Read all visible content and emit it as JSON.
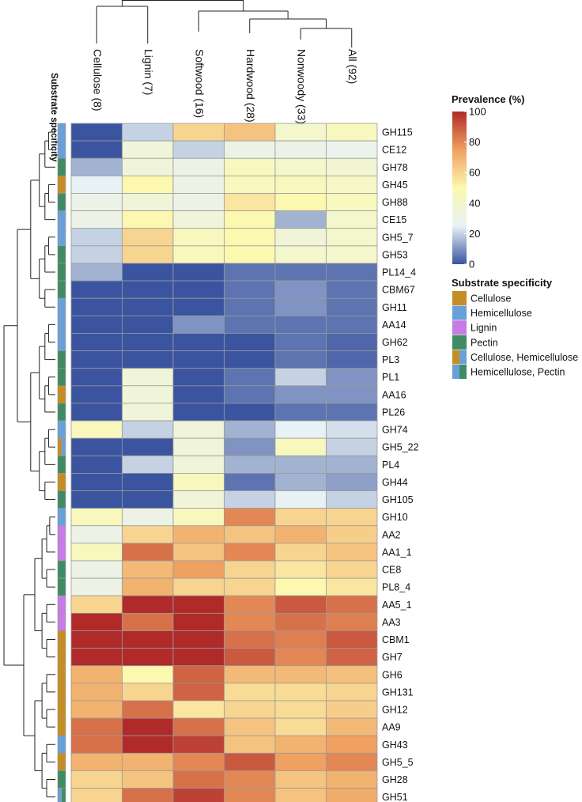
{
  "chart_data": {
    "type": "heatmap",
    "title": "",
    "columns": [
      "Cellulose (8)",
      "Lignin (7)",
      "Softwood (16)",
      "Hardwood (28)",
      "Nonwoody (33)",
      "All (92)"
    ],
    "rows": [
      "GH115",
      "CE12",
      "GH78",
      "GH45",
      "GH88",
      "CE15",
      "GH5_7",
      "GH53",
      "PL14_4",
      "CBM67",
      "GH11",
      "AA14",
      "GH62",
      "PL3",
      "PL1",
      "AA16",
      "PL26",
      "GH74",
      "GH5_22",
      "PL4",
      "GH44",
      "GH105",
      "GH10",
      "AA2",
      "AA1_1",
      "CE8",
      "PL8_4",
      "AA5_1",
      "AA3",
      "CBM1",
      "GH7",
      "GH6",
      "GH131",
      "GH12",
      "AA9",
      "GH43",
      "GH5_5",
      "GH28",
      "GH51"
    ],
    "values": [
      [
        0,
        20,
        60,
        65,
        40,
        45
      ],
      [
        0,
        35,
        20,
        30,
        30,
        28
      ],
      [
        15,
        35,
        30,
        45,
        40,
        38
      ],
      [
        25,
        50,
        30,
        45,
        45,
        42
      ],
      [
        30,
        35,
        30,
        55,
        50,
        45
      ],
      [
        30,
        50,
        35,
        50,
        15,
        40
      ],
      [
        20,
        60,
        45,
        50,
        35,
        40
      ],
      [
        20,
        60,
        45,
        50,
        40,
        40
      ],
      [
        15,
        0,
        0,
        5,
        5,
        5
      ],
      [
        0,
        0,
        0,
        5,
        10,
        5
      ],
      [
        0,
        0,
        0,
        5,
        10,
        5
      ],
      [
        0,
        0,
        10,
        5,
        5,
        5
      ],
      [
        0,
        0,
        0,
        0,
        5,
        3
      ],
      [
        0,
        0,
        0,
        0,
        5,
        3
      ],
      [
        0,
        35,
        0,
        5,
        20,
        10
      ],
      [
        0,
        35,
        0,
        5,
        10,
        10
      ],
      [
        0,
        35,
        0,
        0,
        5,
        5
      ],
      [
        45,
        20,
        35,
        15,
        25,
        22
      ],
      [
        0,
        0,
        35,
        10,
        45,
        20
      ],
      [
        0,
        20,
        35,
        15,
        15,
        15
      ],
      [
        0,
        0,
        45,
        5,
        15,
        12
      ],
      [
        0,
        0,
        35,
        20,
        25,
        20
      ],
      [
        45,
        30,
        45,
        80,
        60,
        60
      ],
      [
        30,
        60,
        70,
        65,
        70,
        62
      ],
      [
        45,
        85,
        65,
        80,
        60,
        65
      ],
      [
        30,
        68,
        75,
        60,
        55,
        60
      ],
      [
        30,
        70,
        60,
        60,
        50,
        55
      ],
      [
        60,
        100,
        100,
        80,
        90,
        85
      ],
      [
        100,
        85,
        100,
        80,
        85,
        82
      ],
      [
        100,
        100,
        100,
        85,
        82,
        90
      ],
      [
        100,
        100,
        100,
        90,
        80,
        88
      ],
      [
        70,
        50,
        88,
        68,
        68,
        66
      ],
      [
        70,
        60,
        88,
        58,
        58,
        60
      ],
      [
        70,
        85,
        55,
        60,
        58,
        62
      ],
      [
        85,
        100,
        85,
        65,
        58,
        68
      ],
      [
        85,
        100,
        95,
        65,
        70,
        75
      ],
      [
        70,
        70,
        80,
        90,
        75,
        80
      ],
      [
        60,
        65,
        85,
        80,
        65,
        70
      ],
      [
        60,
        85,
        95,
        80,
        65,
        72
      ]
    ],
    "row_specificity": [
      "Hemicellulose",
      "Hemicellulose",
      "Pectin",
      "Cellulose",
      "Pectin",
      "Hemicellulose",
      "Hemicellulose",
      "Pectin",
      "Pectin",
      "Pectin",
      "Hemicellulose",
      "Hemicellulose",
      "Hemicellulose",
      "Pectin",
      "Pectin",
      "Cellulose",
      "Pectin",
      "Hemicellulose",
      "Cellulose, Hemicellulose",
      "Pectin",
      "Cellulose",
      "Pectin",
      "Hemicellulose",
      "Lignin",
      "Lignin",
      "Pectin",
      "Pectin",
      "Lignin",
      "Lignin",
      "Cellulose",
      "Cellulose",
      "Cellulose",
      "Cellulose",
      "Cellulose",
      "Cellulose",
      "Hemicellulose",
      "Cellulose",
      "Pectin",
      "Hemicellulose, Pectin"
    ],
    "specificity_track_label": "Substrate specificity",
    "colorbar": {
      "title": "Prevalence (%)",
      "min": 0,
      "max": 100,
      "ticks": [
        0,
        20,
        40,
        60,
        80,
        100
      ],
      "stops": [
        "#3a54a0",
        "#e8f2f4",
        "#fcf8b0",
        "#f0a060",
        "#b02a2a"
      ]
    },
    "legend": {
      "title": "Substrate specificity",
      "items": [
        {
          "label": "Cellulose",
          "colors": [
            "#c58d25"
          ]
        },
        {
          "label": "Hemicellulose",
          "colors": [
            "#6aa0d8"
          ]
        },
        {
          "label": "Lignin",
          "colors": [
            "#c77be6"
          ]
        },
        {
          "label": "Pectin",
          "colors": [
            "#3f8b63"
          ]
        },
        {
          "label": "Cellulose, Hemicellulose",
          "colors": [
            "#c58d25",
            "#6aa0d8"
          ]
        },
        {
          "label": "Hemicellulose, Pectin",
          "colors": [
            "#6aa0d8",
            "#3f8b63"
          ]
        }
      ]
    }
  }
}
